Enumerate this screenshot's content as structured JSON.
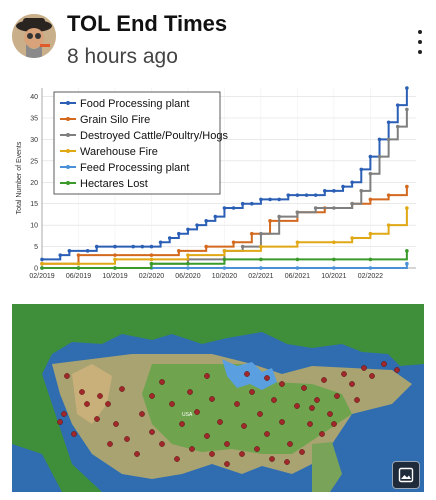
{
  "post": {
    "author": "TOL End Times",
    "timestamp": "8 hours ago"
  },
  "icons": {
    "avatar": "avatar-photo",
    "more": "more-vert-icon",
    "gallery": "image-gallery-icon"
  },
  "chart_data": {
    "type": "line",
    "title": "",
    "xlabel": "",
    "ylabel": "Total Number of Events",
    "ylim": [
      0,
      42
    ],
    "yticks": [
      0,
      5,
      10,
      15,
      20,
      25,
      30,
      35,
      40
    ],
    "xlim": [
      "2019-02",
      "2022-07"
    ],
    "xticks": [
      "02/2019",
      "06/2019",
      "10/2019",
      "02/2020",
      "06/2020",
      "10/2020",
      "02/2021",
      "06/2021",
      "10/2021",
      "02/2022"
    ],
    "legend_position": "top-left",
    "grid": true,
    "series": [
      {
        "name": "Food Processing plant",
        "color": "#2b5fb5",
        "x": [
          "2019-02",
          "2019-04",
          "2019-05",
          "2019-07",
          "2019-08",
          "2019-10",
          "2019-12",
          "2020-01",
          "2020-02",
          "2020-03",
          "2020-04",
          "2020-05",
          "2020-06",
          "2020-07",
          "2020-08",
          "2020-09",
          "2020-10",
          "2020-11",
          "2020-12",
          "2021-01",
          "2021-02",
          "2021-03",
          "2021-04",
          "2021-05",
          "2021-06",
          "2021-07",
          "2021-08",
          "2021-09",
          "2021-10",
          "2021-11",
          "2021-12",
          "2022-01",
          "2022-02",
          "2022-03",
          "2022-04",
          "2022-05",
          "2022-06"
        ],
        "y": [
          2,
          3,
          4,
          4,
          5,
          5,
          5,
          5,
          5,
          6,
          7,
          8,
          9,
          10,
          11,
          12,
          14,
          14,
          15,
          15,
          16,
          16,
          16,
          17,
          17,
          17,
          17,
          18,
          18,
          19,
          20,
          23,
          26,
          30,
          34,
          38,
          42
        ]
      },
      {
        "name": "Grain Silo Fire",
        "color": "#d2691e",
        "x": [
          "2019-02",
          "2019-06",
          "2019-10",
          "2020-02",
          "2020-05",
          "2020-08",
          "2020-11",
          "2021-01",
          "2021-03",
          "2021-06",
          "2021-09",
          "2021-12",
          "2022-02",
          "2022-04",
          "2022-06"
        ],
        "y": [
          1,
          3,
          3,
          3,
          4,
          5,
          6,
          8,
          11,
          13,
          14,
          15,
          16,
          17,
          19
        ]
      },
      {
        "name": "Destroyed Cattle/Poultry/Hogs",
        "color": "#7f7f7f",
        "x": [
          "2019-02",
          "2019-10",
          "2020-02",
          "2020-06",
          "2020-10",
          "2020-12",
          "2021-02",
          "2021-04",
          "2021-06",
          "2021-08",
          "2021-10",
          "2021-12",
          "2022-01",
          "2022-02",
          "2022-03",
          "2022-04",
          "2022-05",
          "2022-06"
        ],
        "y": [
          0,
          0,
          1,
          2,
          4,
          5,
          8,
          12,
          13,
          14,
          14,
          15,
          18,
          22,
          26,
          30,
          33,
          37
        ]
      },
      {
        "name": "Warehouse Fire",
        "color": "#e0a814",
        "x": [
          "2019-02",
          "2019-06",
          "2019-10",
          "2020-02",
          "2020-06",
          "2020-10",
          "2021-02",
          "2021-06",
          "2021-10",
          "2021-12",
          "2022-02",
          "2022-04",
          "2022-06"
        ],
        "y": [
          1,
          1,
          2,
          2,
          3,
          4,
          5,
          6,
          6,
          7,
          8,
          10,
          14
        ]
      },
      {
        "name": "Feed Processing plant",
        "color": "#4a90d9",
        "x": [
          "2019-02",
          "2019-06",
          "2019-10",
          "2020-02",
          "2020-06",
          "2020-10",
          "2021-02",
          "2021-06",
          "2021-10",
          "2022-02",
          "2022-06"
        ],
        "y": [
          0,
          0,
          0,
          0,
          0,
          0,
          0,
          0,
          0,
          0,
          1
        ]
      },
      {
        "name": "Hectares Lost",
        "color": "#3a9a2a",
        "x": [
          "2019-02",
          "2019-06",
          "2019-10",
          "2020-02",
          "2020-06",
          "2020-10",
          "2021-02",
          "2021-06",
          "2021-10",
          "2022-02",
          "2022-06"
        ],
        "y": [
          0,
          0,
          0,
          1,
          1,
          2,
          2,
          2,
          2,
          2,
          4
        ]
      }
    ]
  }
}
